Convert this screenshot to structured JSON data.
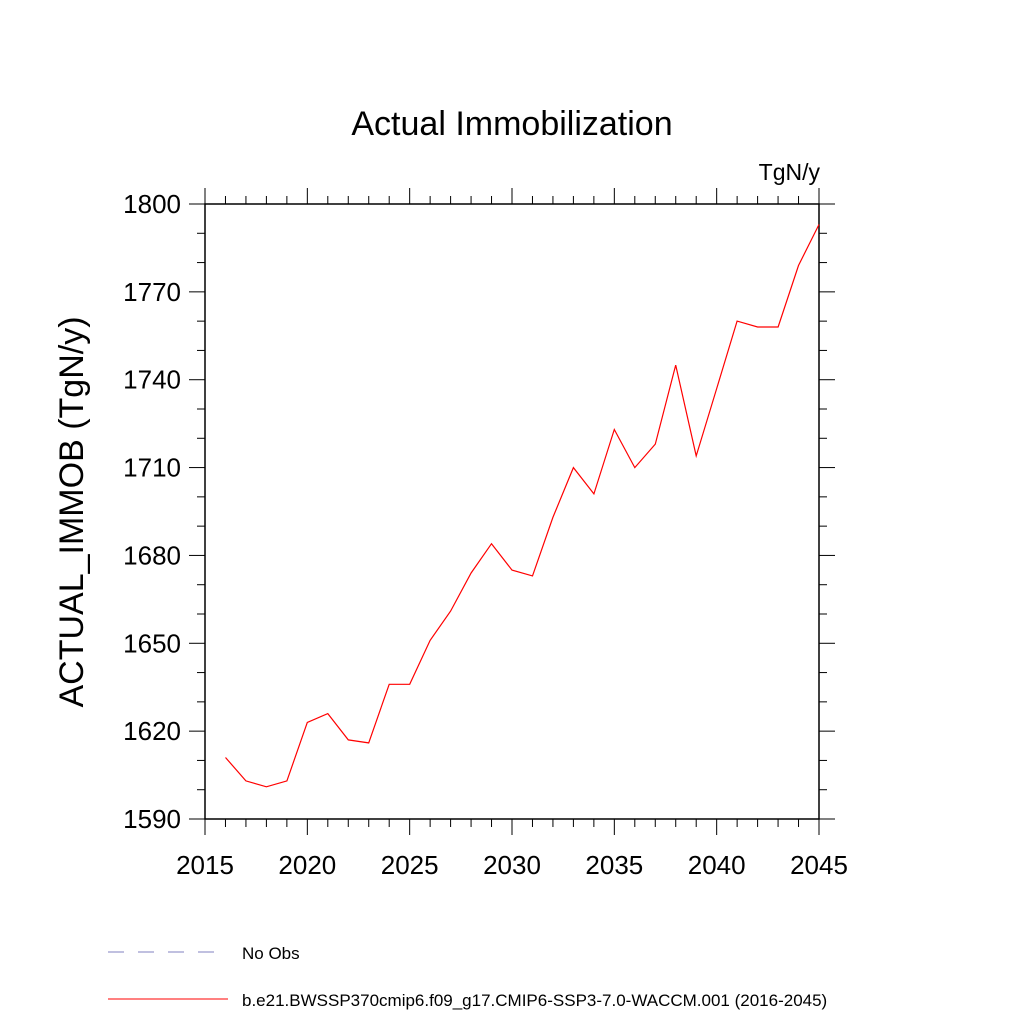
{
  "chart_data": {
    "type": "line",
    "title": "Actual Immobilization",
    "units_label": "TgN/y",
    "xlabel": "",
    "ylabel": "ACTUAL_IMMOB  (TgN/y)",
    "xlim": [
      2015,
      2045
    ],
    "ylim": [
      1590,
      1800
    ],
    "x_ticks": [
      2015,
      2020,
      2025,
      2030,
      2035,
      2040,
      2045
    ],
    "y_ticks": [
      1590,
      1620,
      1650,
      1680,
      1710,
      1740,
      1770,
      1800
    ],
    "x_tick_labels": [
      "2015",
      "2020",
      "2025",
      "2030",
      "2035",
      "2040",
      "2045"
    ],
    "y_tick_labels": [
      "1590",
      "1620",
      "1650",
      "1680",
      "1710",
      "1740",
      "1770",
      "1800"
    ],
    "grid": false,
    "legend_placement": "bottom-left",
    "series": [
      {
        "name": "b.e21.BWSSP370cmip6.f09_g17.CMIP6-SSP3-7.0-WACCM.001 (2016-2045)",
        "color": "#ff0000",
        "style": "solid",
        "x": [
          2016,
          2017,
          2018,
          2019,
          2020,
          2021,
          2022,
          2023,
          2024,
          2025,
          2026,
          2027,
          2028,
          2029,
          2030,
          2031,
          2032,
          2033,
          2034,
          2035,
          2036,
          2037,
          2038,
          2039,
          2040,
          2041,
          2042,
          2043,
          2044,
          2045
        ],
        "y": [
          1611,
          1603,
          1601,
          1603,
          1623,
          1626,
          1617,
          1616,
          1636,
          1636,
          1651,
          1661,
          1674,
          1684,
          1675,
          1673,
          1693,
          1710,
          1701,
          1723,
          1710,
          1718,
          1745,
          1714,
          1737,
          1760,
          1758,
          1758,
          1779,
          1793
        ]
      },
      {
        "name": "No Obs",
        "color": "#8080c0",
        "style": "dashed",
        "x": [],
        "y": []
      }
    ]
  }
}
